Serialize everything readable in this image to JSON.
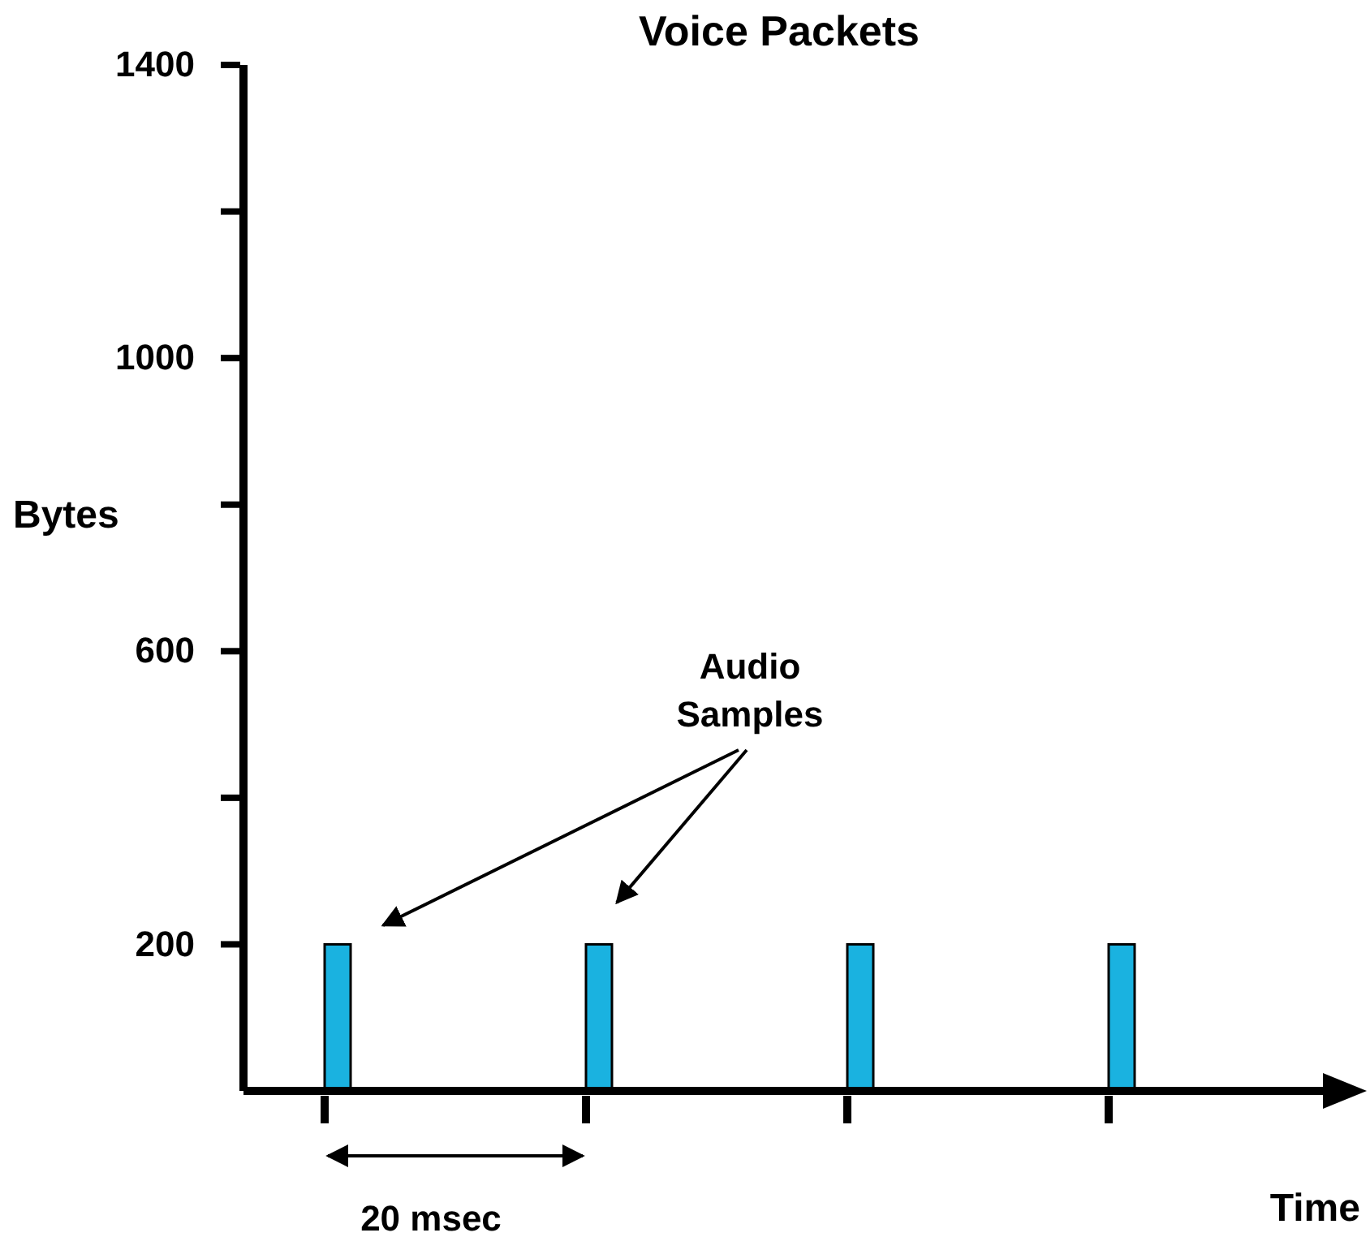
{
  "chart_data": {
    "type": "bar",
    "title": "Voice Packets",
    "ylabel": "Bytes",
    "xlabel": "Time",
    "categories": [
      null,
      null,
      null,
      null
    ],
    "values": [
      200,
      200,
      200,
      200
    ],
    "color": "#1ab2e0",
    "ylim": [
      0,
      1400
    ],
    "yticks": [
      200,
      {
        "value": 400,
        "label": null
      },
      600,
      {
        "value": 800,
        "label": null
      },
      1000,
      {
        "value": 1200,
        "label": null
      },
      1400
    ],
    "annotations": [
      "Audio Samples",
      "20 msec"
    ],
    "grid": false
  }
}
